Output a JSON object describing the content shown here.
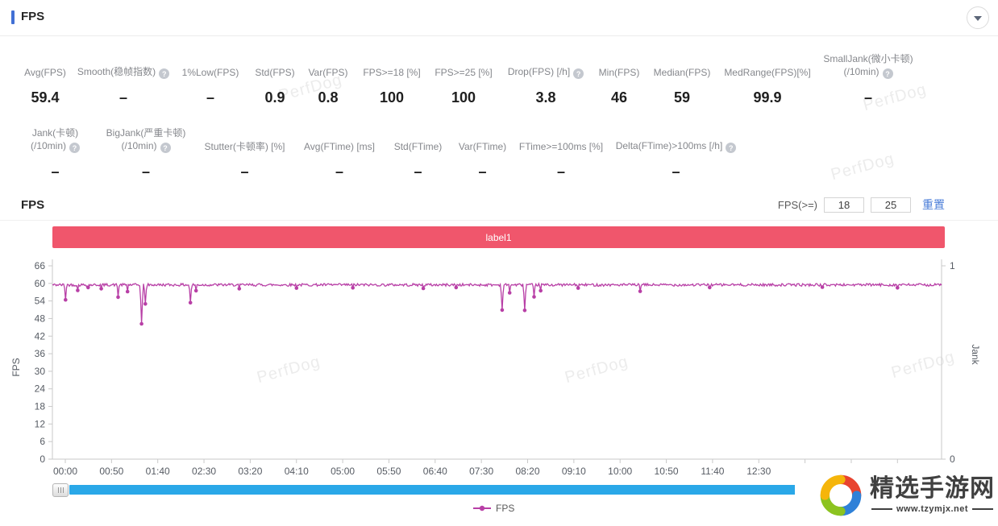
{
  "header": {
    "title": "FPS"
  },
  "stats": {
    "row1": [
      {
        "key": "avg-fps",
        "label": "Avg(FPS)",
        "value": "59.4"
      },
      {
        "key": "smooth",
        "label": "Smooth(稳帧指数)",
        "value": "–",
        "help": true
      },
      {
        "key": "low1",
        "label": "1%Low(FPS)",
        "value": "–"
      },
      {
        "key": "std-fps",
        "label": "Std(FPS)",
        "value": "0.9"
      },
      {
        "key": "var-fps",
        "label": "Var(FPS)",
        "value": "0.8"
      },
      {
        "key": "fps-ge-18",
        "label": "FPS>=18 [%]",
        "value": "100"
      },
      {
        "key": "fps-ge-25",
        "label": "FPS>=25 [%]",
        "value": "100"
      },
      {
        "key": "drop-fps",
        "label": "Drop(FPS) [/h]",
        "value": "3.8",
        "help": true
      },
      {
        "key": "min-fps",
        "label": "Min(FPS)",
        "value": "46"
      },
      {
        "key": "median-fps",
        "label": "Median(FPS)",
        "value": "59"
      },
      {
        "key": "medrange-fps",
        "label": "MedRange(FPS)[%]",
        "value": "99.9"
      },
      {
        "key": "smalljank",
        "label": "SmallJank(微小卡顿)",
        "label2": "(/10min)",
        "value": "–",
        "help": true
      }
    ],
    "row2": [
      {
        "key": "jank",
        "label": "Jank(卡顿)",
        "label2": "(/10min)",
        "value": "–",
        "help": true
      },
      {
        "key": "bigjank",
        "label": "BigJank(严重卡顿)",
        "label2": "(/10min)",
        "value": "–",
        "help": true
      },
      {
        "key": "stutter",
        "label": "Stutter(卡顿率) [%]",
        "value": "–"
      },
      {
        "key": "avg-ftime",
        "label": "Avg(FTime) [ms]",
        "value": "–"
      },
      {
        "key": "std-ftime",
        "label": "Std(FTime)",
        "value": "–"
      },
      {
        "key": "var-ftime",
        "label": "Var(FTime)",
        "value": "–"
      },
      {
        "key": "ftime-ge-100",
        "label": "FTime>=100ms [%]",
        "value": "–"
      },
      {
        "key": "delta-ftime",
        "label": "Delta(FTime)>100ms [/h]",
        "value": "–",
        "help": true
      }
    ]
  },
  "chart": {
    "title": "FPS",
    "filter_label": "FPS(>=)",
    "threshold1": "18",
    "threshold2": "25",
    "reset_label": "重置"
  },
  "chart_data": {
    "type": "line",
    "title": "FPS",
    "annotation_bar": {
      "text": "label1",
      "color": "#f0566c"
    },
    "x_axis": {
      "tick_labels": [
        "00:00",
        "00:50",
        "01:40",
        "02:30",
        "03:20",
        "04:10",
        "05:00",
        "05:50",
        "06:40",
        "07:30",
        "08:20",
        "09:10",
        "10:00",
        "10:50",
        "11:40",
        "12:30"
      ],
      "tick_interval_s": 50,
      "unlabeled_extra_ticks": 3,
      "duration_s": 947
    },
    "y_axis_left": {
      "label": "FPS",
      "ticks": [
        0,
        6,
        12,
        18,
        24,
        30,
        36,
        42,
        48,
        54,
        60,
        66
      ],
      "range": [
        0,
        66
      ]
    },
    "y_axis_right": {
      "label": "Jank",
      "ticks": [
        0,
        1
      ],
      "range": [
        0,
        1
      ]
    },
    "grid": false,
    "legend": {
      "position": "bottom",
      "entries": [
        "FPS"
      ]
    },
    "series": [
      {
        "name": "FPS",
        "color": "#b83fa6",
        "baseline": 59.5,
        "noise": 0.45,
        "sample_interval_s": 1,
        "dips": [
          [
            14,
            54.4
          ],
          [
            27,
            57.6
          ],
          [
            38,
            58.6
          ],
          [
            52,
            58.2
          ],
          [
            70,
            55.3
          ],
          [
            80,
            57.2
          ],
          [
            95,
            46.2
          ],
          [
            99,
            53.0
          ],
          [
            147,
            53.4
          ],
          [
            153,
            57.5
          ],
          [
            199,
            58.2
          ],
          [
            260,
            58.4
          ],
          [
            320,
            58.5
          ],
          [
            395,
            58.3
          ],
          [
            430,
            58.6
          ],
          [
            479,
            50.9
          ],
          [
            487,
            56.8
          ],
          [
            503,
            50.8
          ],
          [
            513,
            55.4
          ],
          [
            520,
            57.5
          ],
          [
            560,
            58.4
          ],
          [
            626,
            57.3
          ],
          [
            700,
            58.6
          ],
          [
            820,
            58.7
          ],
          [
            900,
            58.5
          ]
        ]
      }
    ]
  },
  "watermark": {
    "text": "PerfDog"
  },
  "site_badge": {
    "title": "精选手游网",
    "url": "www.tzymjx.net"
  }
}
